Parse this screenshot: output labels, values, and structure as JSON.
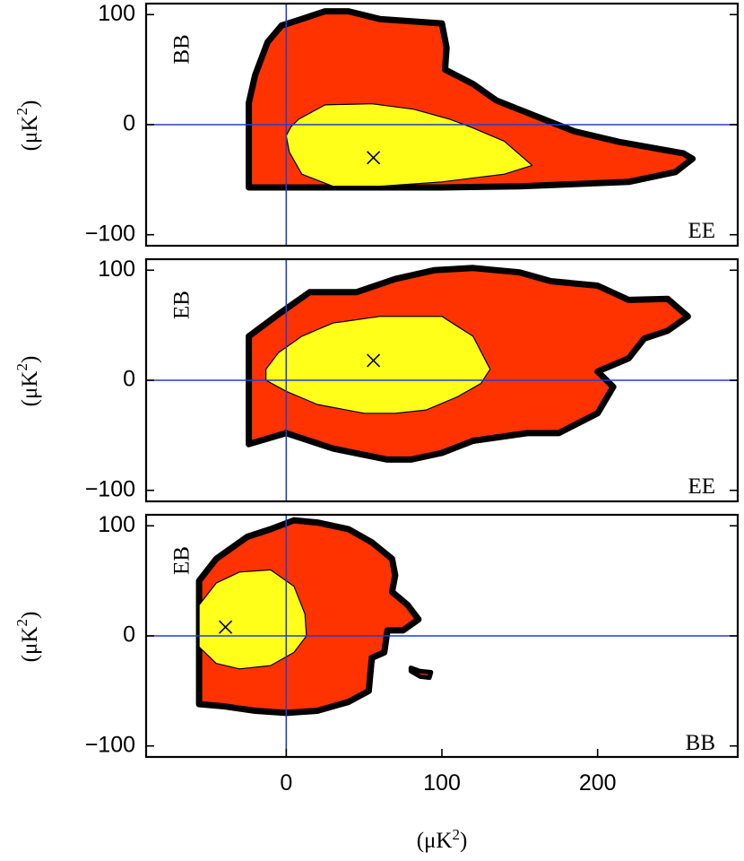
{
  "chart_data": [
    {
      "type": "contour",
      "panel_label": "BB",
      "corner_label": "EE",
      "ylabel": "(μK",
      "ylabel_sup": "2",
      "ylabel_close": ")",
      "xlim": [
        -90,
        290
      ],
      "ylim": [
        -110,
        110
      ],
      "yticks": [
        100,
        0,
        -100
      ],
      "ytick_labels": [
        "100",
        "0",
        "−100"
      ],
      "best_fit": {
        "x": 56,
        "y": -30
      },
      "outer_contour": [
        [
          -24,
          -57
        ],
        [
          -24,
          20
        ],
        [
          -20,
          45
        ],
        [
          -12,
          75
        ],
        [
          -3,
          90
        ],
        [
          10,
          96
        ],
        [
          25,
          103
        ],
        [
          40,
          103
        ],
        [
          60,
          96
        ],
        [
          100,
          92
        ],
        [
          103,
          70
        ],
        [
          102,
          50
        ],
        [
          120,
          37
        ],
        [
          135,
          22
        ],
        [
          160,
          8
        ],
        [
          185,
          -6
        ],
        [
          215,
          -16
        ],
        [
          255,
          -26
        ],
        [
          261,
          -31
        ],
        [
          250,
          -43
        ],
        [
          220,
          -52
        ],
        [
          150,
          -56
        ],
        [
          100,
          -57
        ],
        [
          40,
          -57
        ],
        [
          8,
          -57
        ]
      ],
      "inner_contour": [
        [
          3,
          -2
        ],
        [
          8,
          5
        ],
        [
          25,
          18
        ],
        [
          55,
          19
        ],
        [
          82,
          14
        ],
        [
          105,
          5
        ],
        [
          120,
          -3
        ],
        [
          140,
          -15
        ],
        [
          158,
          -37
        ],
        [
          140,
          -45
        ],
        [
          100,
          -52
        ],
        [
          60,
          -56
        ],
        [
          30,
          -56
        ],
        [
          10,
          -45
        ],
        [
          2,
          -25
        ],
        [
          0,
          -10
        ]
      ]
    },
    {
      "type": "contour",
      "panel_label": "EB",
      "corner_label": "EE",
      "ylabel": "(μK",
      "ylabel_sup": "2",
      "ylabel_close": ")",
      "xlim": [
        -90,
        290
      ],
      "ylim": [
        -110,
        110
      ],
      "yticks": [
        100,
        0,
        -100
      ],
      "ytick_labels": [
        "100",
        "0",
        "−100"
      ],
      "best_fit": {
        "x": 56,
        "y": 18
      },
      "outer_contour": [
        [
          -24,
          -58
        ],
        [
          -24,
          40
        ],
        [
          -5,
          60
        ],
        [
          15,
          80
        ],
        [
          45,
          80
        ],
        [
          70,
          92
        ],
        [
          95,
          100
        ],
        [
          120,
          102
        ],
        [
          150,
          98
        ],
        [
          170,
          90
        ],
        [
          200,
          86
        ],
        [
          220,
          73
        ],
        [
          245,
          74
        ],
        [
          258,
          58
        ],
        [
          245,
          45
        ],
        [
          230,
          38
        ],
        [
          220,
          20
        ],
        [
          200,
          8
        ],
        [
          210,
          -6
        ],
        [
          200,
          -30
        ],
        [
          175,
          -48
        ],
        [
          155,
          -48
        ],
        [
          120,
          -55
        ],
        [
          100,
          -66
        ],
        [
          80,
          -72
        ],
        [
          65,
          -72
        ],
        [
          30,
          -62
        ],
        [
          0,
          -48
        ]
      ],
      "inner_contour": [
        [
          -13,
          10
        ],
        [
          -5,
          25
        ],
        [
          10,
          40
        ],
        [
          30,
          52
        ],
        [
          60,
          58
        ],
        [
          100,
          58
        ],
        [
          120,
          40
        ],
        [
          131,
          10
        ],
        [
          125,
          -3
        ],
        [
          110,
          -15
        ],
        [
          90,
          -27
        ],
        [
          70,
          -30
        ],
        [
          50,
          -30
        ],
        [
          20,
          -22
        ],
        [
          0,
          -10
        ],
        [
          -13,
          0
        ]
      ]
    },
    {
      "type": "contour",
      "panel_label": "EB",
      "corner_label": "BB",
      "ylabel": "(μK",
      "ylabel_sup": "2",
      "ylabel_close": ")",
      "xlim": [
        -90,
        290
      ],
      "ylim": [
        -110,
        110
      ],
      "yticks": [
        100,
        0,
        -100
      ],
      "ytick_labels": [
        "100",
        "0",
        "−100"
      ],
      "xticks": [
        0,
        100,
        200
      ],
      "xtick_labels": [
        "0",
        "100",
        "200"
      ],
      "xlabel": "(μK",
      "xlabel_sup": "2",
      "xlabel_close": ")",
      "best_fit": {
        "x": -39,
        "y": 8
      },
      "outer_contour": [
        [
          -56,
          -62
        ],
        [
          -56,
          50
        ],
        [
          -45,
          70
        ],
        [
          -25,
          90
        ],
        [
          -10,
          97
        ],
        [
          5,
          105
        ],
        [
          20,
          103
        ],
        [
          40,
          97
        ],
        [
          55,
          85
        ],
        [
          68,
          70
        ],
        [
          70,
          55
        ],
        [
          68,
          40
        ],
        [
          78,
          28
        ],
        [
          85,
          15
        ],
        [
          75,
          5
        ],
        [
          65,
          5
        ],
        [
          63,
          -15
        ],
        [
          55,
          -20
        ],
        [
          53,
          -50
        ],
        [
          40,
          -60
        ],
        [
          20,
          -68
        ],
        [
          0,
          -70
        ],
        [
          -20,
          -68
        ],
        [
          -40,
          -64
        ]
      ],
      "inner_contour": [
        [
          -56,
          28
        ],
        [
          -45,
          48
        ],
        [
          -30,
          58
        ],
        [
          -10,
          60
        ],
        [
          5,
          45
        ],
        [
          12,
          20
        ],
        [
          13,
          0
        ],
        [
          5,
          -15
        ],
        [
          -10,
          -27
        ],
        [
          -30,
          -30
        ],
        [
          -45,
          -25
        ],
        [
          -56,
          -10
        ]
      ],
      "island": [
        [
          80,
          -29
        ],
        [
          86,
          -32
        ],
        [
          93,
          -33
        ],
        [
          92,
          -38
        ],
        [
          86,
          -37
        ],
        [
          80,
          -32
        ]
      ]
    }
  ]
}
